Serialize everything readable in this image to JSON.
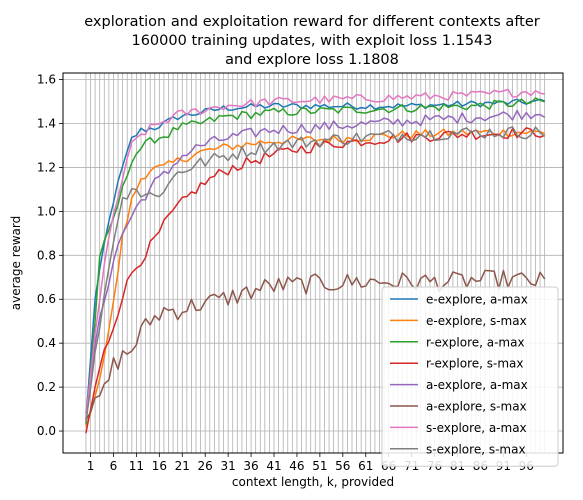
{
  "chart_data": {
    "type": "line",
    "title": [
      "exploration and exploitation reward for different contexts after",
      "160000 training updates, with exploit loss 1.1543",
      "and explore loss 1.1808"
    ],
    "xlabel": "context length, k, provided",
    "ylabel": "average reward",
    "xlim": [
      -5,
      104
    ],
    "ylim": [
      -0.1,
      1.63
    ],
    "xticks": [
      1,
      6,
      11,
      16,
      21,
      26,
      31,
      36,
      41,
      46,
      51,
      56,
      61,
      66,
      71,
      76,
      81,
      86,
      91,
      96
    ],
    "yticks": [
      0.0,
      0.2,
      0.4,
      0.6,
      0.8,
      1.0,
      1.2,
      1.4,
      1.6
    ],
    "ytick_labels": [
      "0.0",
      "0.2",
      "0.4",
      "0.6",
      "0.8",
      "1.0",
      "1.2",
      "1.4",
      "1.6"
    ],
    "grid": true,
    "legend_position": "lower-right",
    "x_start": 0,
    "x_end": 100,
    "series": [
      {
        "name": "e-explore, a-max",
        "color": "#1f77b4",
        "anchors": [
          [
            0,
            0.05
          ],
          [
            2,
            0.6
          ],
          [
            4,
            0.85
          ],
          [
            6,
            1.05
          ],
          [
            8,
            1.2
          ],
          [
            10,
            1.33
          ],
          [
            12,
            1.37
          ],
          [
            15,
            1.38
          ],
          [
            18,
            1.41
          ],
          [
            20,
            1.43
          ],
          [
            25,
            1.45
          ],
          [
            30,
            1.47
          ],
          [
            40,
            1.48
          ],
          [
            55,
            1.48
          ],
          [
            70,
            1.48
          ],
          [
            85,
            1.49
          ],
          [
            100,
            1.5
          ]
        ]
      },
      {
        "name": "e-explore, s-max",
        "color": "#ff7f0e",
        "anchors": [
          [
            0,
            0.02
          ],
          [
            2,
            0.15
          ],
          [
            4,
            0.35
          ],
          [
            6,
            0.58
          ],
          [
            8,
            0.88
          ],
          [
            10,
            1.05
          ],
          [
            12,
            1.15
          ],
          [
            14,
            1.19
          ],
          [
            17,
            1.2
          ],
          [
            20,
            1.23
          ],
          [
            25,
            1.27
          ],
          [
            30,
            1.29
          ],
          [
            40,
            1.32
          ],
          [
            55,
            1.33
          ],
          [
            70,
            1.35
          ],
          [
            85,
            1.36
          ],
          [
            100,
            1.36
          ]
        ]
      },
      {
        "name": "r-explore, a-max",
        "color": "#2ca02c",
        "anchors": [
          [
            0,
            0.03
          ],
          [
            2,
            0.5
          ],
          [
            3,
            0.8
          ],
          [
            5,
            0.9
          ],
          [
            8,
            1.1
          ],
          [
            10,
            1.24
          ],
          [
            12,
            1.29
          ],
          [
            15,
            1.33
          ],
          [
            18,
            1.35
          ],
          [
            20,
            1.38
          ],
          [
            25,
            1.4
          ],
          [
            30,
            1.43
          ],
          [
            40,
            1.45
          ],
          [
            55,
            1.46
          ],
          [
            70,
            1.47
          ],
          [
            85,
            1.48
          ],
          [
            100,
            1.5
          ]
        ]
      },
      {
        "name": "r-explore, s-max",
        "color": "#d62728",
        "anchors": [
          [
            0,
            -0.01
          ],
          [
            2,
            0.2
          ],
          [
            4,
            0.36
          ],
          [
            6,
            0.48
          ],
          [
            8,
            0.62
          ],
          [
            10,
            0.72
          ],
          [
            12,
            0.78
          ],
          [
            15,
            0.87
          ],
          [
            18,
            0.97
          ],
          [
            20,
            1.02
          ],
          [
            24,
            1.1
          ],
          [
            28,
            1.16
          ],
          [
            32,
            1.2
          ],
          [
            38,
            1.24
          ],
          [
            45,
            1.28
          ],
          [
            55,
            1.31
          ],
          [
            65,
            1.33
          ],
          [
            80,
            1.35
          ],
          [
            100,
            1.36
          ]
        ]
      },
      {
        "name": "a-explore, a-max",
        "color": "#9467bd",
        "anchors": [
          [
            0,
            0.08
          ],
          [
            2,
            0.4
          ],
          [
            4,
            0.6
          ],
          [
            6,
            0.78
          ],
          [
            8,
            0.9
          ],
          [
            10,
            0.98
          ],
          [
            12,
            1.05
          ],
          [
            15,
            1.13
          ],
          [
            18,
            1.18
          ],
          [
            20,
            1.24
          ],
          [
            25,
            1.3
          ],
          [
            30,
            1.33
          ],
          [
            40,
            1.37
          ],
          [
            55,
            1.39
          ],
          [
            70,
            1.41
          ],
          [
            85,
            1.43
          ],
          [
            100,
            1.45
          ]
        ]
      },
      {
        "name": "a-explore, s-max",
        "color": "#8c564b",
        "anchors": [
          [
            0,
            0.05
          ],
          [
            2,
            0.13
          ],
          [
            4,
            0.18
          ],
          [
            6,
            0.3
          ],
          [
            8,
            0.34
          ],
          [
            10,
            0.37
          ],
          [
            12,
            0.45
          ],
          [
            14,
            0.5
          ],
          [
            17,
            0.55
          ],
          [
            20,
            0.55
          ],
          [
            25,
            0.58
          ],
          [
            30,
            0.6
          ],
          [
            35,
            0.63
          ],
          [
            40,
            0.66
          ],
          [
            50,
            0.67
          ],
          [
            60,
            0.68
          ],
          [
            70,
            0.68
          ],
          [
            80,
            0.68
          ],
          [
            90,
            0.69
          ],
          [
            100,
            0.68
          ]
        ]
      },
      {
        "name": "s-explore, a-max",
        "color": "#e377c2",
        "anchors": [
          [
            0,
            0.05
          ],
          [
            2,
            0.45
          ],
          [
            4,
            0.75
          ],
          [
            6,
            0.98
          ],
          [
            8,
            1.15
          ],
          [
            10,
            1.3
          ],
          [
            12,
            1.35
          ],
          [
            15,
            1.39
          ],
          [
            18,
            1.42
          ],
          [
            20,
            1.44
          ],
          [
            25,
            1.46
          ],
          [
            30,
            1.48
          ],
          [
            40,
            1.5
          ],
          [
            55,
            1.51
          ],
          [
            70,
            1.52
          ],
          [
            85,
            1.53
          ],
          [
            100,
            1.55
          ]
        ]
      },
      {
        "name": "s-explore, s-max",
        "color": "#7f7f7f",
        "anchors": [
          [
            0,
            0.04
          ],
          [
            2,
            0.35
          ],
          [
            4,
            0.62
          ],
          [
            6,
            0.88
          ],
          [
            8,
            1.05
          ],
          [
            10,
            1.12
          ],
          [
            12,
            1.08
          ],
          [
            15,
            1.07
          ],
          [
            18,
            1.12
          ],
          [
            20,
            1.18
          ],
          [
            25,
            1.22
          ],
          [
            30,
            1.25
          ],
          [
            40,
            1.3
          ],
          [
            55,
            1.33
          ],
          [
            70,
            1.35
          ],
          [
            85,
            1.36
          ],
          [
            100,
            1.36
          ]
        ]
      }
    ]
  }
}
